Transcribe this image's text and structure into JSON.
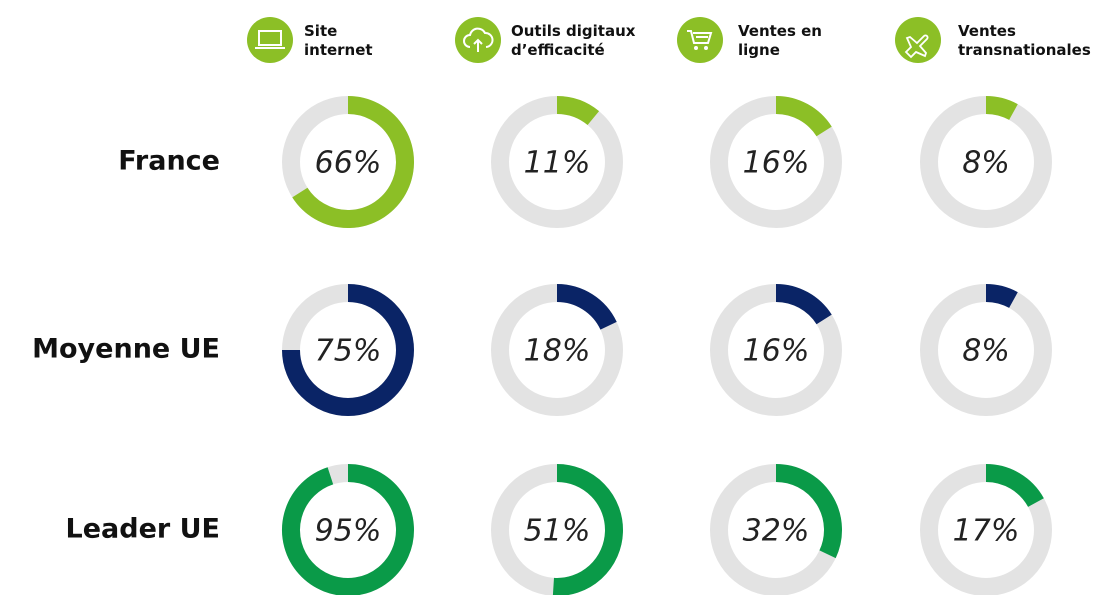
{
  "chart_data": {
    "type": "donut",
    "categories": [
      "Site internet",
      "Outils digitaux d’efficacité",
      "Ventes en ligne",
      "Ventes transnationales"
    ],
    "ylim": [
      0,
      100
    ],
    "track_color": "#e3e3e3",
    "series": [
      {
        "name": "France",
        "color": "#8cbf26",
        "values": [
          66,
          11,
          16,
          8
        ],
        "value_labels": [
          "66%",
          "11%",
          "16%",
          "8%"
        ]
      },
      {
        "name": "Moyenne UE",
        "color": "#0a2466",
        "values": [
          75,
          18,
          16,
          8
        ],
        "value_labels": [
          "75%",
          "18%",
          "16%",
          "8%"
        ]
      },
      {
        "name": "Leader UE",
        "color": "#0a9a48",
        "values": [
          95,
          51,
          32,
          17
        ],
        "value_labels": [
          "95%",
          "51%",
          "32%",
          "17%"
        ]
      }
    ]
  }
}
